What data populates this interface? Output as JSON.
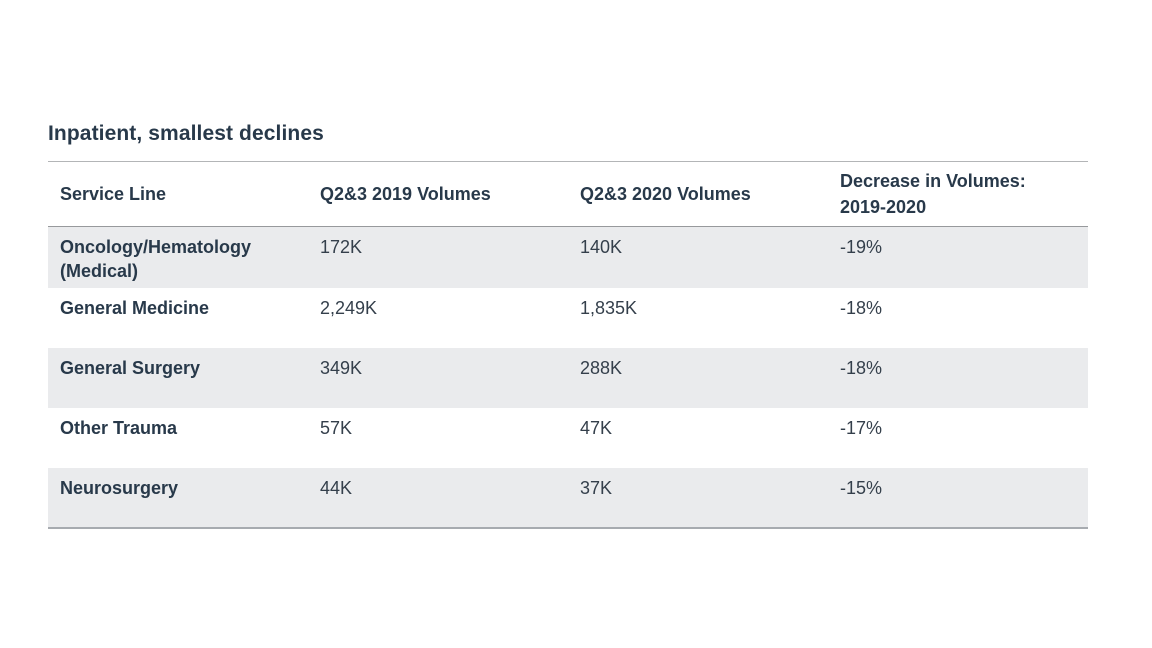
{
  "title": "Inpatient, smallest declines",
  "table": {
    "columns": [
      "Service Line",
      "Q2&3 2019 Volumes",
      "Q2&3 2020 Volumes",
      "Decrease in Volumes: 2019-2020"
    ],
    "rows": [
      {
        "service_line": "Oncology/Hematology (Medical)",
        "q23_2019": "172K",
        "q23_2020": "140K",
        "decrease": "-19%"
      },
      {
        "service_line": "General Medicine",
        "q23_2019": "2,249K",
        "q23_2020": "1,835K",
        "decrease": "-18%"
      },
      {
        "service_line": "General Surgery",
        "q23_2019": "349K",
        "q23_2020": "288K",
        "decrease": "-18%"
      },
      {
        "service_line": "Other Trauma",
        "q23_2019": "57K",
        "q23_2020": "47K",
        "decrease": "-17%"
      },
      {
        "service_line": "Neurosurgery",
        "q23_2019": "44K",
        "q23_2020": "37K",
        "decrease": "-15%"
      }
    ]
  },
  "colors": {
    "text_dark": "#28394a",
    "text_value": "#343f4b",
    "row_shade": "#eaebed",
    "border_light": "#b3b5b7",
    "border_mid": "#97999c",
    "border_bottom": "#a7abb0",
    "page_bg": "#ffffff"
  }
}
